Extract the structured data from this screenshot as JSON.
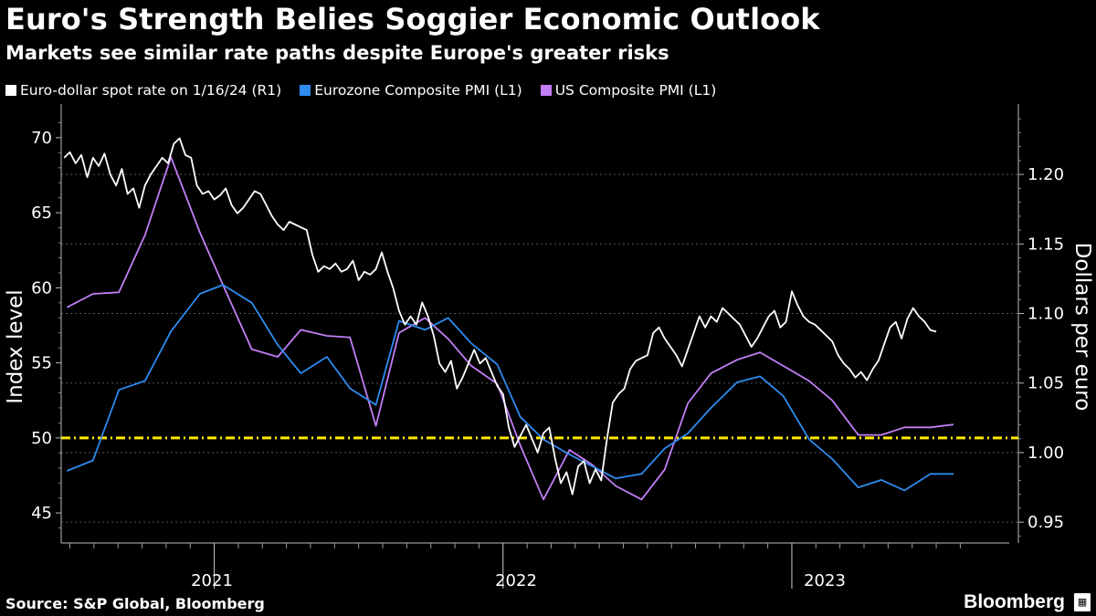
{
  "header": {
    "title": "Euro's Strength Belies Soggier Economic Outlook",
    "subtitle": "Markets see similar rate paths despite Europe's greater risks"
  },
  "footer": {
    "source": "Source: S&P Global, Bloomberg",
    "brand": "Bloomberg",
    "brand_icon": "bloomberg-terminal-icon"
  },
  "colors": {
    "background": "#000000",
    "eur": "#ffffff",
    "eurozone": "#2e8bf0",
    "us": "#c27ef5",
    "threshold": "#ffe800",
    "grid": "#555555"
  },
  "chart_data": {
    "type": "line",
    "title": "Euro's Strength Belies Soggier Economic Outlook",
    "subtitle": "Markets see similar rate paths despite Europe's greater risks",
    "legend": [
      {
        "label": "Euro-dollar spot rate on 1/16/24 (R1)",
        "color": "#ffffff"
      },
      {
        "label": "Eurozone Composite PMI (L1)",
        "color": "#2e8bf0"
      },
      {
        "label": "US Composite PMI (L1)",
        "color": "#c27ef5"
      }
    ],
    "legend_position": "top-left",
    "y_left": {
      "label": "Index level",
      "range": [
        43,
        72
      ],
      "ticks": [
        45,
        50,
        55,
        60,
        65,
        70
      ]
    },
    "y_right": {
      "label": "Dollars per euro",
      "range": [
        0.935,
        1.248
      ],
      "ticks": [
        0.95,
        1.0,
        1.05,
        1.1,
        1.15,
        1.2
      ],
      "tick_labels": [
        "0.95",
        "1.00",
        "1.05",
        "1.10",
        "1.15",
        "1.20"
      ]
    },
    "x_axis": {
      "year_labels": [
        "2021",
        "2022",
        "2023"
      ]
    },
    "threshold": {
      "value": 50,
      "style": "dash-dot",
      "color": "#ffe800"
    },
    "series": [
      {
        "name": "Eurozone Composite PMI (L1)",
        "axis": "left",
        "points": [
          {
            "x": 2020.49,
            "y": 47.8
          },
          {
            "x": 2020.58,
            "y": 48.5
          },
          {
            "x": 2020.67,
            "y": 53.2
          },
          {
            "x": 2020.76,
            "y": 53.8
          },
          {
            "x": 2020.85,
            "y": 57.1
          },
          {
            "x": 2020.95,
            "y": 59.6
          },
          {
            "x": 2021.03,
            "y": 60.2
          },
          {
            "x": 2021.13,
            "y": 59.0
          },
          {
            "x": 2021.22,
            "y": 56.2
          },
          {
            "x": 2021.3,
            "y": 54.3
          },
          {
            "x": 2021.39,
            "y": 55.4
          },
          {
            "x": 2021.47,
            "y": 53.3
          },
          {
            "x": 2021.56,
            "y": 52.2
          },
          {
            "x": 2021.64,
            "y": 57.8
          },
          {
            "x": 2021.73,
            "y": 57.2
          },
          {
            "x": 2021.81,
            "y": 58.0
          },
          {
            "x": 2021.89,
            "y": 56.3
          },
          {
            "x": 2021.98,
            "y": 54.9
          },
          {
            "x": 2022.06,
            "y": 51.4
          },
          {
            "x": 2022.14,
            "y": 49.9
          },
          {
            "x": 2022.23,
            "y": 48.9
          },
          {
            "x": 2022.31,
            "y": 48.1
          },
          {
            "x": 2022.39,
            "y": 47.3
          },
          {
            "x": 2022.48,
            "y": 47.6
          },
          {
            "x": 2022.56,
            "y": 49.3
          },
          {
            "x": 2022.64,
            "y": 50.3
          },
          {
            "x": 2022.72,
            "y": 52.0
          },
          {
            "x": 2022.81,
            "y": 53.7
          },
          {
            "x": 2022.89,
            "y": 54.1
          },
          {
            "x": 2022.97,
            "y": 52.8
          },
          {
            "x": 2023.06,
            "y": 49.9
          },
          {
            "x": 2023.14,
            "y": 48.6
          },
          {
            "x": 2023.23,
            "y": 46.7
          },
          {
            "x": 2023.31,
            "y": 47.2
          },
          {
            "x": 2023.39,
            "y": 46.5
          },
          {
            "x": 2023.48,
            "y": 47.6
          },
          {
            "x": 2023.56,
            "y": 47.6
          }
        ]
      },
      {
        "name": "US Composite PMI (L1)",
        "axis": "left",
        "points": [
          {
            "x": 2020.49,
            "y": 58.7
          },
          {
            "x": 2020.58,
            "y": 59.6
          },
          {
            "x": 2020.67,
            "y": 59.7
          },
          {
            "x": 2020.76,
            "y": 63.5
          },
          {
            "x": 2020.85,
            "y": 68.7
          },
          {
            "x": 2020.95,
            "y": 63.7
          },
          {
            "x": 2021.03,
            "y": 60.2
          },
          {
            "x": 2021.13,
            "y": 55.9
          },
          {
            "x": 2021.22,
            "y": 55.4
          },
          {
            "x": 2021.3,
            "y": 57.2
          },
          {
            "x": 2021.39,
            "y": 56.8
          },
          {
            "x": 2021.47,
            "y": 56.7
          },
          {
            "x": 2021.56,
            "y": 50.8
          },
          {
            "x": 2021.64,
            "y": 57.0
          },
          {
            "x": 2021.73,
            "y": 58.0
          },
          {
            "x": 2021.81,
            "y": 56.6
          },
          {
            "x": 2021.89,
            "y": 54.8
          },
          {
            "x": 2021.98,
            "y": 53.6
          },
          {
            "x": 2022.06,
            "y": 49.5
          },
          {
            "x": 2022.14,
            "y": 45.9
          },
          {
            "x": 2022.23,
            "y": 49.2
          },
          {
            "x": 2022.31,
            "y": 48.2
          },
          {
            "x": 2022.39,
            "y": 46.8
          },
          {
            "x": 2022.48,
            "y": 45.9
          },
          {
            "x": 2022.56,
            "y": 47.9
          },
          {
            "x": 2022.64,
            "y": 52.3
          },
          {
            "x": 2022.72,
            "y": 54.3
          },
          {
            "x": 2022.81,
            "y": 55.2
          },
          {
            "x": 2022.89,
            "y": 55.7
          },
          {
            "x": 2022.97,
            "y": 54.8
          },
          {
            "x": 2023.06,
            "y": 53.8
          },
          {
            "x": 2023.14,
            "y": 52.5
          },
          {
            "x": 2023.23,
            "y": 50.2
          },
          {
            "x": 2023.31,
            "y": 50.2
          },
          {
            "x": 2023.39,
            "y": 50.7
          },
          {
            "x": 2023.48,
            "y": 50.7
          },
          {
            "x": 2023.56,
            "y": 50.9
          }
        ]
      },
      {
        "name": "Euro-dollar spot rate on 1/16/24 (R1)",
        "axis": "right",
        "points": [
          {
            "x": 2020.48,
            "y": 1.212
          },
          {
            "x": 2020.5,
            "y": 1.216
          },
          {
            "x": 2020.52,
            "y": 1.208
          },
          {
            "x": 2020.54,
            "y": 1.214
          },
          {
            "x": 2020.56,
            "y": 1.198
          },
          {
            "x": 2020.58,
            "y": 1.212
          },
          {
            "x": 2020.6,
            "y": 1.206
          },
          {
            "x": 2020.62,
            "y": 1.215
          },
          {
            "x": 2020.64,
            "y": 1.2
          },
          {
            "x": 2020.66,
            "y": 1.192
          },
          {
            "x": 2020.68,
            "y": 1.204
          },
          {
            "x": 2020.7,
            "y": 1.186
          },
          {
            "x": 2020.72,
            "y": 1.19
          },
          {
            "x": 2020.74,
            "y": 1.176
          },
          {
            "x": 2020.76,
            "y": 1.192
          },
          {
            "x": 2020.78,
            "y": 1.2
          },
          {
            "x": 2020.8,
            "y": 1.206
          },
          {
            "x": 2020.82,
            "y": 1.212
          },
          {
            "x": 2020.84,
            "y": 1.208
          },
          {
            "x": 2020.86,
            "y": 1.222
          },
          {
            "x": 2020.88,
            "y": 1.226
          },
          {
            "x": 2020.9,
            "y": 1.214
          },
          {
            "x": 2020.92,
            "y": 1.212
          },
          {
            "x": 2020.94,
            "y": 1.192
          },
          {
            "x": 2020.96,
            "y": 1.186
          },
          {
            "x": 2020.98,
            "y": 1.188
          },
          {
            "x": 2021.0,
            "y": 1.182
          },
          {
            "x": 2021.02,
            "y": 1.185
          },
          {
            "x": 2021.04,
            "y": 1.19
          },
          {
            "x": 2021.06,
            "y": 1.178
          },
          {
            "x": 2021.08,
            "y": 1.172
          },
          {
            "x": 2021.1,
            "y": 1.176
          },
          {
            "x": 2021.12,
            "y": 1.182
          },
          {
            "x": 2021.14,
            "y": 1.188
          },
          {
            "x": 2021.16,
            "y": 1.186
          },
          {
            "x": 2021.18,
            "y": 1.178
          },
          {
            "x": 2021.2,
            "y": 1.17
          },
          {
            "x": 2021.22,
            "y": 1.164
          },
          {
            "x": 2021.24,
            "y": 1.16
          },
          {
            "x": 2021.26,
            "y": 1.166
          },
          {
            "x": 2021.28,
            "y": 1.164
          },
          {
            "x": 2021.3,
            "y": 1.162
          },
          {
            "x": 2021.32,
            "y": 1.16
          },
          {
            "x": 2021.34,
            "y": 1.142
          },
          {
            "x": 2021.36,
            "y": 1.13
          },
          {
            "x": 2021.38,
            "y": 1.134
          },
          {
            "x": 2021.4,
            "y": 1.132
          },
          {
            "x": 2021.42,
            "y": 1.136
          },
          {
            "x": 2021.44,
            "y": 1.13
          },
          {
            "x": 2021.46,
            "y": 1.132
          },
          {
            "x": 2021.48,
            "y": 1.138
          },
          {
            "x": 2021.5,
            "y": 1.124
          },
          {
            "x": 2021.52,
            "y": 1.13
          },
          {
            "x": 2021.54,
            "y": 1.128
          },
          {
            "x": 2021.56,
            "y": 1.132
          },
          {
            "x": 2021.58,
            "y": 1.144
          },
          {
            "x": 2021.6,
            "y": 1.13
          },
          {
            "x": 2021.62,
            "y": 1.118
          },
          {
            "x": 2021.64,
            "y": 1.102
          },
          {
            "x": 2021.66,
            "y": 1.092
          },
          {
            "x": 2021.68,
            "y": 1.098
          },
          {
            "x": 2021.7,
            "y": 1.092
          },
          {
            "x": 2021.72,
            "y": 1.108
          },
          {
            "x": 2021.74,
            "y": 1.098
          },
          {
            "x": 2021.76,
            "y": 1.084
          },
          {
            "x": 2021.78,
            "y": 1.064
          },
          {
            "x": 2021.8,
            "y": 1.058
          },
          {
            "x": 2021.82,
            "y": 1.066
          },
          {
            "x": 2021.84,
            "y": 1.046
          },
          {
            "x": 2021.86,
            "y": 1.054
          },
          {
            "x": 2021.88,
            "y": 1.064
          },
          {
            "x": 2021.9,
            "y": 1.074
          },
          {
            "x": 2021.92,
            "y": 1.064
          },
          {
            "x": 2021.94,
            "y": 1.068
          },
          {
            "x": 2021.96,
            "y": 1.058
          },
          {
            "x": 2021.98,
            "y": 1.048
          },
          {
            "x": 2022.0,
            "y": 1.042
          },
          {
            "x": 2022.02,
            "y": 1.018
          },
          {
            "x": 2022.04,
            "y": 1.004
          },
          {
            "x": 2022.06,
            "y": 1.012
          },
          {
            "x": 2022.08,
            "y": 1.02
          },
          {
            "x": 2022.1,
            "y": 1.01
          },
          {
            "x": 2022.12,
            "y": 1.0
          },
          {
            "x": 2022.14,
            "y": 1.014
          },
          {
            "x": 2022.16,
            "y": 1.018
          },
          {
            "x": 2022.18,
            "y": 0.996
          },
          {
            "x": 2022.2,
            "y": 0.978
          },
          {
            "x": 2022.22,
            "y": 0.986
          },
          {
            "x": 2022.24,
            "y": 0.97
          },
          {
            "x": 2022.26,
            "y": 0.99
          },
          {
            "x": 2022.28,
            "y": 0.994
          },
          {
            "x": 2022.3,
            "y": 0.978
          },
          {
            "x": 2022.32,
            "y": 0.988
          },
          {
            "x": 2022.34,
            "y": 0.98
          },
          {
            "x": 2022.36,
            "y": 1.01
          },
          {
            "x": 2022.38,
            "y": 1.036
          },
          {
            "x": 2022.4,
            "y": 1.042
          },
          {
            "x": 2022.42,
            "y": 1.046
          },
          {
            "x": 2022.44,
            "y": 1.06
          },
          {
            "x": 2022.46,
            "y": 1.066
          },
          {
            "x": 2022.48,
            "y": 1.068
          },
          {
            "x": 2022.5,
            "y": 1.07
          },
          {
            "x": 2022.52,
            "y": 1.086
          },
          {
            "x": 2022.54,
            "y": 1.09
          },
          {
            "x": 2022.56,
            "y": 1.082
          },
          {
            "x": 2022.58,
            "y": 1.076
          },
          {
            "x": 2022.6,
            "y": 1.07
          },
          {
            "x": 2022.62,
            "y": 1.062
          },
          {
            "x": 2022.64,
            "y": 1.074
          },
          {
            "x": 2022.66,
            "y": 1.086
          },
          {
            "x": 2022.68,
            "y": 1.098
          },
          {
            "x": 2022.7,
            "y": 1.09
          },
          {
            "x": 2022.72,
            "y": 1.098
          },
          {
            "x": 2022.74,
            "y": 1.094
          },
          {
            "x": 2022.76,
            "y": 1.104
          },
          {
            "x": 2022.78,
            "y": 1.1
          },
          {
            "x": 2022.8,
            "y": 1.096
          },
          {
            "x": 2022.82,
            "y": 1.092
          },
          {
            "x": 2022.84,
            "y": 1.084
          },
          {
            "x": 2022.86,
            "y": 1.076
          },
          {
            "x": 2022.88,
            "y": 1.082
          },
          {
            "x": 2022.9,
            "y": 1.09
          },
          {
            "x": 2022.92,
            "y": 1.098
          },
          {
            "x": 2022.94,
            "y": 1.102
          },
          {
            "x": 2022.96,
            "y": 1.09
          },
          {
            "x": 2022.98,
            "y": 1.094
          },
          {
            "x": 2023.0,
            "y": 1.116
          },
          {
            "x": 2023.02,
            "y": 1.106
          },
          {
            "x": 2023.04,
            "y": 1.098
          },
          {
            "x": 2023.06,
            "y": 1.094
          },
          {
            "x": 2023.08,
            "y": 1.092
          },
          {
            "x": 2023.1,
            "y": 1.088
          },
          {
            "x": 2023.12,
            "y": 1.084
          },
          {
            "x": 2023.14,
            "y": 1.08
          },
          {
            "x": 2023.16,
            "y": 1.07
          },
          {
            "x": 2023.18,
            "y": 1.064
          },
          {
            "x": 2023.2,
            "y": 1.06
          },
          {
            "x": 2023.22,
            "y": 1.054
          },
          {
            "x": 2023.24,
            "y": 1.058
          },
          {
            "x": 2023.26,
            "y": 1.052
          },
          {
            "x": 2023.28,
            "y": 1.06
          },
          {
            "x": 2023.3,
            "y": 1.066
          },
          {
            "x": 2023.32,
            "y": 1.078
          },
          {
            "x": 2023.34,
            "y": 1.09
          },
          {
            "x": 2023.36,
            "y": 1.094
          },
          {
            "x": 2023.38,
            "y": 1.082
          },
          {
            "x": 2023.4,
            "y": 1.096
          },
          {
            "x": 2023.42,
            "y": 1.104
          },
          {
            "x": 2023.44,
            "y": 1.098
          },
          {
            "x": 2023.46,
            "y": 1.094
          },
          {
            "x": 2023.48,
            "y": 1.088
          },
          {
            "x": 2023.5,
            "y": 1.087
          }
        ]
      }
    ]
  }
}
